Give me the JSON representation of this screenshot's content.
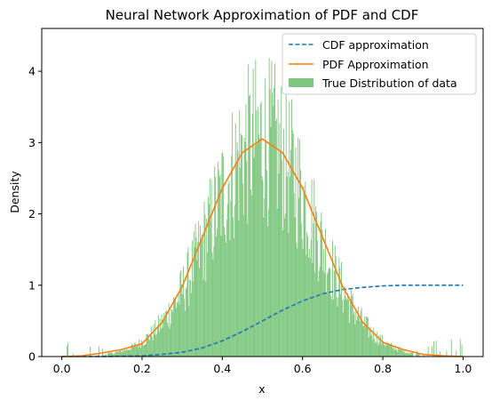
{
  "chart_data": {
    "type": "histogram",
    "title": "Neural Network Approximation of PDF and CDF",
    "xlabel": "x",
    "ylabel": "Density",
    "xlim": [
      -0.05,
      1.05
    ],
    "ylim": [
      0,
      4.6
    ],
    "x_ticks": [
      0.0,
      0.2,
      0.4,
      0.6,
      0.8,
      1.0
    ],
    "x_tick_labels": [
      "0.0",
      "0.2",
      "0.4",
      "0.6",
      "0.8",
      "1.0"
    ],
    "y_ticks": [
      0,
      1,
      2,
      3,
      4
    ],
    "y_tick_labels": [
      "0",
      "1",
      "2",
      "3",
      "4"
    ],
    "grid": false,
    "legend_position": "top-right",
    "histogram": {
      "name": "True Distribution of data",
      "color": "#7fc77f",
      "bin_count": 500,
      "range": [
        0.0,
        1.0
      ],
      "approx_shape": {
        "mean": 0.5,
        "std": 0.13,
        "peak_density": 3.05,
        "max_bin_density": 4.4
      }
    },
    "series": [
      {
        "name": "CDF approximation",
        "style": "dashed",
        "color": "#1f77b4",
        "x": [
          0.0,
          0.05,
          0.1,
          0.15,
          0.2,
          0.25,
          0.3,
          0.35,
          0.4,
          0.45,
          0.5,
          0.55,
          0.6,
          0.65,
          0.7,
          0.75,
          0.8,
          0.85,
          0.9,
          0.95,
          1.0
        ],
        "y": [
          0.0,
          0.0,
          0.0,
          0.005,
          0.01,
          0.03,
          0.06,
          0.12,
          0.22,
          0.35,
          0.5,
          0.65,
          0.78,
          0.88,
          0.94,
          0.97,
          0.99,
          1.0,
          1.0,
          1.0,
          1.0
        ]
      },
      {
        "name": "PDF Approximation",
        "style": "solid",
        "color": "#ff7f0e",
        "x": [
          0.0,
          0.05,
          0.1,
          0.15,
          0.2,
          0.25,
          0.3,
          0.35,
          0.4,
          0.45,
          0.5,
          0.55,
          0.6,
          0.65,
          0.7,
          0.75,
          0.8,
          0.85,
          0.9,
          0.95,
          1.0
        ],
        "y": [
          0.0,
          0.01,
          0.05,
          0.1,
          0.18,
          0.48,
          0.98,
          1.67,
          2.36,
          2.86,
          3.05,
          2.86,
          2.36,
          1.67,
          0.98,
          0.48,
          0.2,
          0.1,
          0.03,
          0.01,
          0.0
        ]
      }
    ]
  }
}
